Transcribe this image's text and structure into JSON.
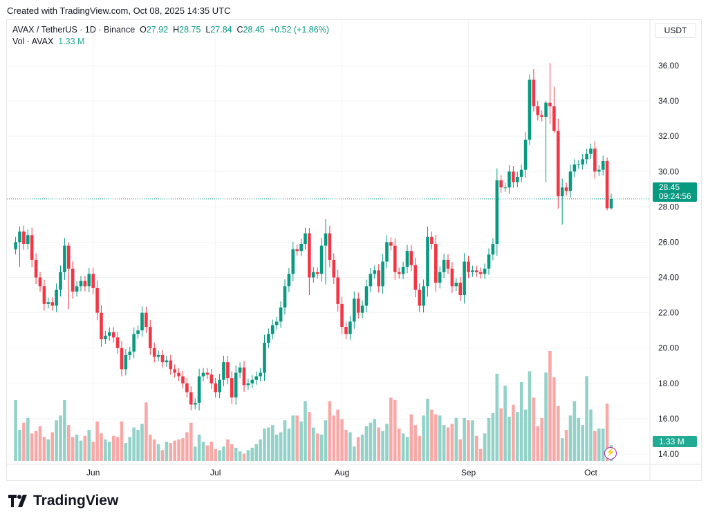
{
  "header": {
    "created": "Created with TradingView.com, Oct 08, 2025 14:35 UTC"
  },
  "legend": {
    "symbol": "AVAX / TetherUS · 1D · Binance",
    "o_label": "O",
    "o": "27.92",
    "h_label": "H",
    "h": "28.75",
    "l_label": "L",
    "l": "27.84",
    "c_label": "C",
    "c": "28.45",
    "change": "+0.52 (+1.86%)",
    "vol_label": "Vol · AVAX",
    "vol": "1.33 M"
  },
  "currency": "USDT",
  "last_price": "28.45",
  "countdown": "09:24:56",
  "last_volume": "1.33 M",
  "brand": "TradingView",
  "colors": {
    "up": "#089981",
    "down": "#f23645",
    "vol_up": "#92d2c8",
    "vol_down": "#f7a9a7"
  },
  "chart_data": {
    "type": "candlestick",
    "title": "AVAX / TetherUS · 1D · Binance",
    "ylim": [
      13.6,
      37.0
    ],
    "y_ticks": [
      "36.00",
      "34.00",
      "32.00",
      "30.00",
      "28.00",
      "26.00",
      "24.00",
      "22.00",
      "20.00",
      "18.00",
      "16.00",
      "14.00"
    ],
    "x_ticks": [
      {
        "label": "Jun",
        "day_index": 19
      },
      {
        "label": "Jul",
        "day_index": 49
      },
      {
        "label": "Aug",
        "day_index": 80
      },
      {
        "label": "Sep",
        "day_index": 111
      },
      {
        "label": "Oct",
        "day_index": 141
      }
    ],
    "first_open": 25.6,
    "close": [
      26.0,
      26.6,
      25.9,
      26.4,
      25.0,
      24.0,
      23.5,
      22.5,
      22.6,
      22.4,
      23.3,
      24.3,
      25.8,
      24.5,
      23.2,
      23.5,
      23.8,
      23.5,
      24.2,
      23.4,
      22.0,
      20.5,
      20.7,
      20.9,
      20.6,
      20.0,
      18.8,
      19.6,
      19.8,
      20.8,
      21.0,
      22.0,
      21.2,
      20.0,
      19.5,
      19.6,
      19.2,
      19.3,
      18.8,
      18.6,
      18.4,
      18.0,
      17.5,
      16.8,
      16.9,
      18.4,
      18.6,
      18.5,
      18.0,
      17.5,
      18.2,
      19.2,
      18.3,
      17.2,
      18.6,
      18.9,
      17.9,
      18.0,
      18.2,
      18.4,
      18.6,
      20.3,
      20.8,
      21.3,
      21.5,
      22.3,
      23.5,
      24.2,
      25.6,
      25.5,
      25.9,
      26.5,
      24.0,
      24.3,
      24.2,
      25.8,
      26.5,
      25.0,
      24.0,
      22.5,
      21.2,
      20.8,
      21.5,
      22.8,
      22.0,
      22.4,
      23.5,
      24.2,
      24.4,
      23.5,
      24.9,
      26.0,
      25.8,
      24.3,
      24.2,
      24.6,
      25.5,
      24.7,
      23.3,
      22.4,
      23.5,
      26.3,
      25.9,
      23.7,
      24.3,
      25.0,
      24.5,
      23.5,
      23.7,
      23.0,
      24.9,
      24.3,
      24.4,
      24.3,
      24.2,
      24.5,
      25.3,
      25.9,
      29.5,
      29.1,
      29.1,
      30.0,
      29.4,
      29.7,
      30.1,
      31.8,
      35.2,
      33.7,
      33.2,
      33.1,
      33.9,
      33.7,
      32.3,
      28.6,
      29.1,
      28.9,
      30.0,
      30.4,
      30.4,
      30.7,
      31.0,
      31.3,
      30.0,
      30.1,
      30.6,
      27.92,
      28.45
    ],
    "wick_overrides": {
      "1": [
        26.9,
        24.6
      ],
      "13": [
        26.0,
        22.2
      ],
      "72": [
        26.8,
        23.0
      ],
      "76": [
        27.3,
        23.6
      ],
      "126": [
        35.5,
        31.5
      ],
      "127": [
        35.8,
        33.4
      ],
      "131": [
        36.15,
        32.7
      ],
      "130": [
        34.0,
        29.4
      ],
      "132": [
        34.8,
        32.2
      ],
      "134": [
        29.6,
        27.0
      ],
      "145": [
        30.8,
        27.8
      ],
      "146": [
        28.75,
        27.84
      ]
    },
    "volume_millions": [
      5.1,
      2.6,
      3.2,
      3.6,
      2.3,
      2.5,
      2.9,
      2.0,
      1.8,
      2.4,
      3.4,
      3.8,
      5.1,
      3.0,
      2.0,
      2.2,
      1.7,
      2.1,
      2.6,
      1.6,
      3.3,
      2.3,
      1.8,
      1.6,
      2.1,
      2.0,
      3.3,
      1.5,
      2.0,
      2.8,
      2.6,
      3.1,
      4.9,
      2.2,
      1.8,
      1.4,
      0.9,
      1.6,
      1.5,
      1.7,
      1.8,
      1.9,
      2.4,
      3.2,
      1.2,
      2.2,
      1.6,
      1.3,
      1.6,
      1.0,
      0.9,
      1.2,
      1.8,
      1.4,
      1.1,
      0.8,
      0.6,
      0.9,
      1.1,
      1.4,
      1.8,
      2.7,
      2.8,
      3.0,
      2.2,
      2.4,
      3.4,
      2.7,
      3.8,
      3.8,
      3.3,
      5.0,
      4.1,
      2.8,
      2.3,
      2.2,
      3.4,
      5.0,
      3.8,
      4.3,
      3.5,
      2.6,
      2.4,
      1.2,
      2.0,
      2.2,
      2.9,
      3.2,
      3.5,
      2.8,
      2.5,
      3.1,
      5.3,
      5.1,
      2.7,
      2.3,
      2.0,
      3.9,
      3.0,
      2.1,
      3.8,
      5.2,
      4.3,
      3.9,
      3.8,
      3.0,
      2.8,
      3.1,
      3.6,
      1.8,
      3.6,
      3.4,
      3.4,
      2.1,
      1.0,
      2.3,
      3.6,
      4.0,
      7.3,
      4.4,
      6.3,
      3.7,
      4.7,
      4.1,
      6.6,
      4.3,
      7.5,
      5.3,
      2.9,
      3.6,
      7.4,
      9.2,
      7.0,
      4.6,
      1.9,
      2.6,
      3.8,
      5.0,
      3.6,
      3.0,
      7.1,
      4.3,
      2.5,
      2.7,
      2.7,
      4.8,
      1.33
    ]
  }
}
